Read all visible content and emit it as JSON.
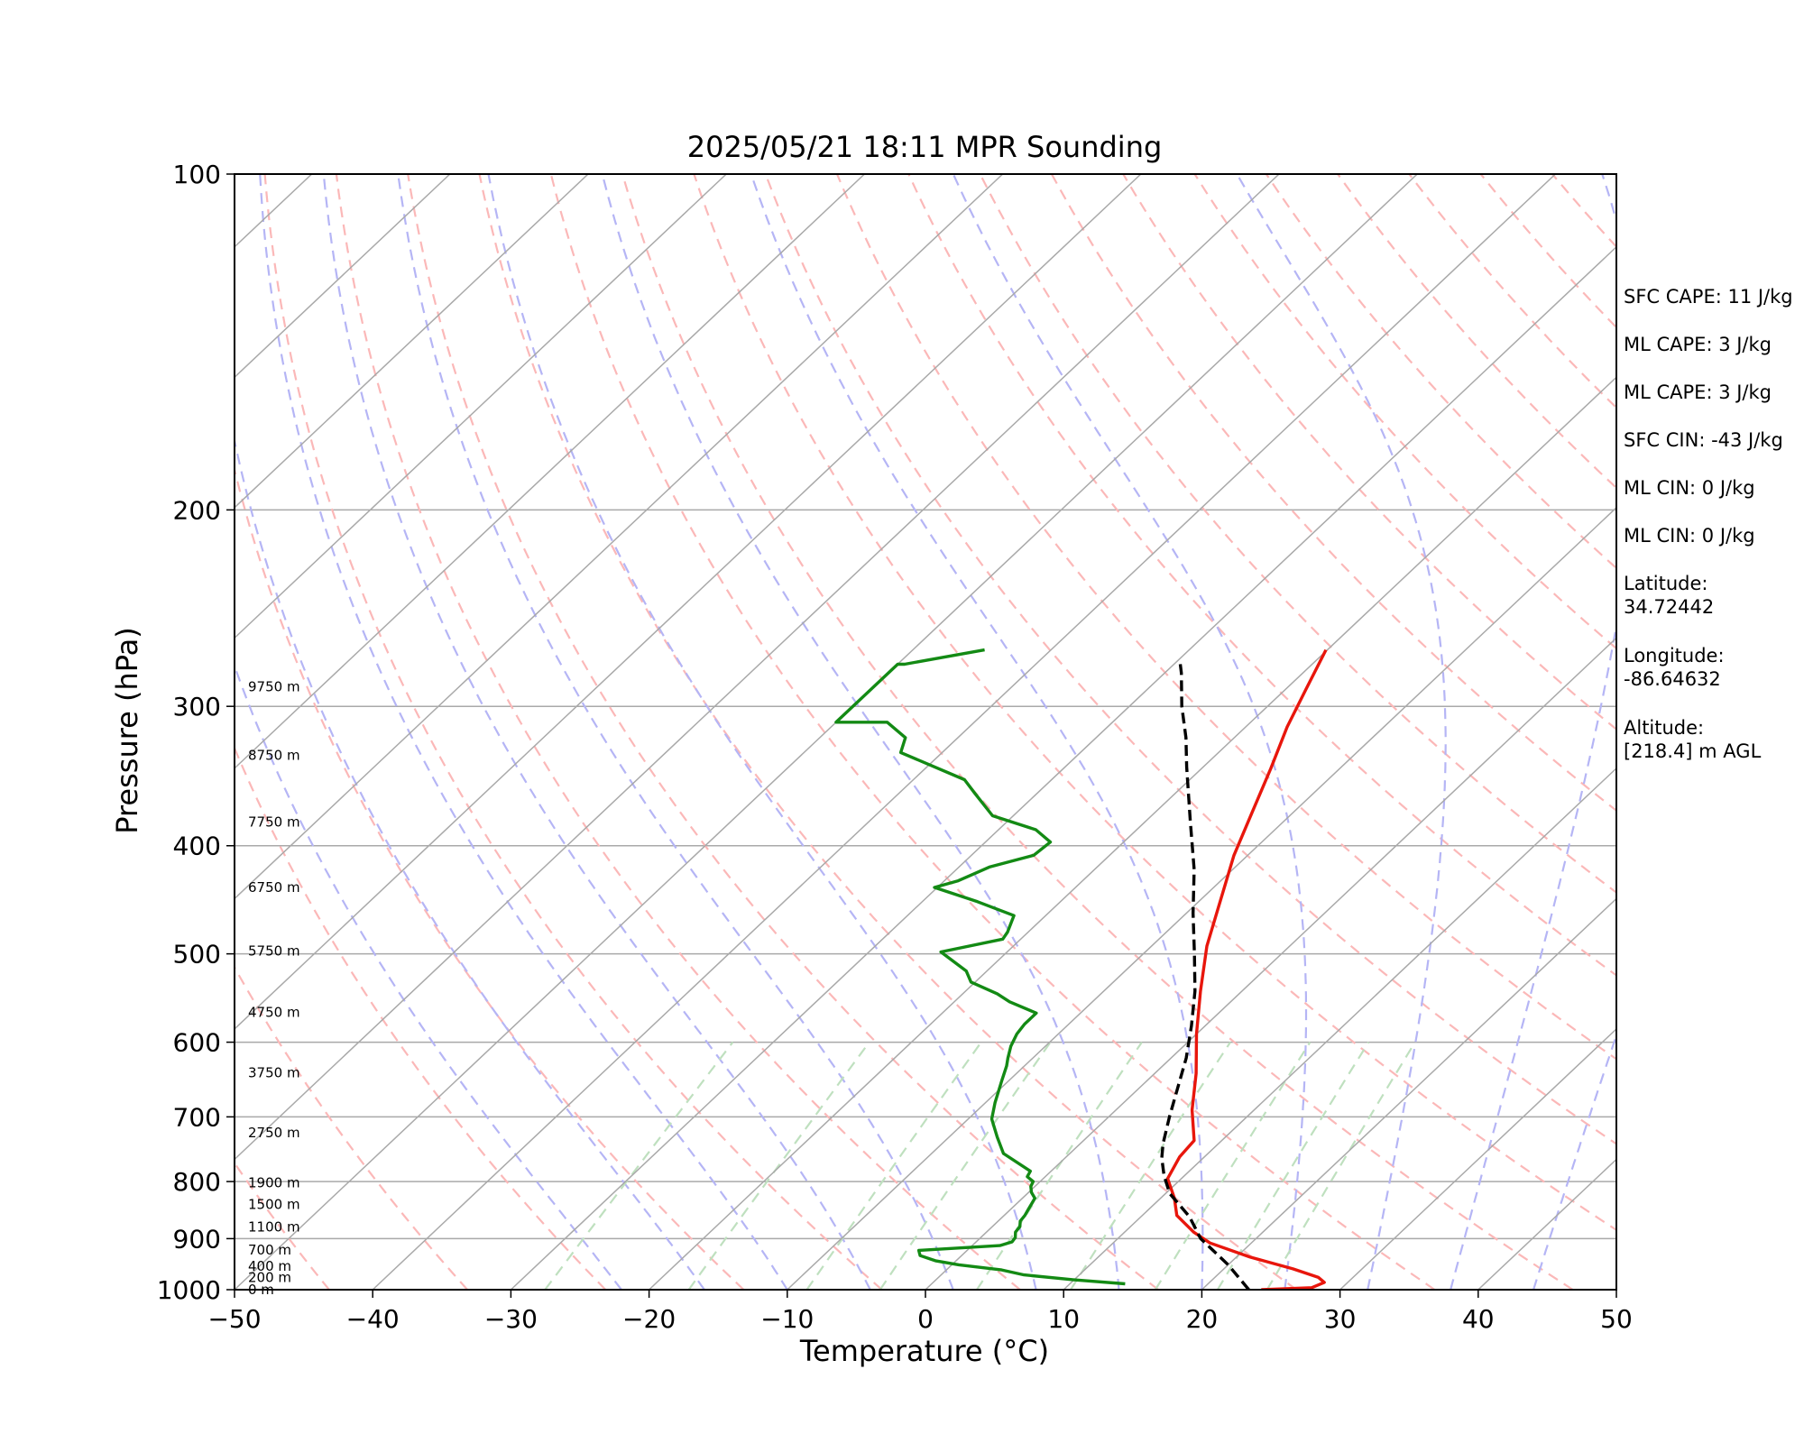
{
  "chart_data": {
    "type": "line",
    "title": "2025/05/21 18:11 MPR Sounding",
    "xlabel": "Temperature (°C)",
    "ylabel": "Pressure (hPa)",
    "xlim": [
      -50,
      50
    ],
    "ylim": [
      1000,
      100
    ],
    "y_scale": "log",
    "x_ticks": [
      "−50",
      "−40",
      "−30",
      "−20",
      "−10",
      "0",
      "10",
      "20",
      "30",
      "40",
      "50"
    ],
    "y_ticks": [
      100,
      200,
      300,
      400,
      500,
      600,
      700,
      800,
      900,
      1000
    ],
    "grid": "horizontal isobars",
    "series": [
      {
        "name": "",
        "role": "temperature",
        "color": "#e8160c",
        "points": [
          [
            -20.1,
            267
          ],
          [
            -18.5,
            290
          ],
          [
            -17,
            313
          ],
          [
            -15,
            341
          ],
          [
            -13,
            373
          ],
          [
            -11,
            408
          ],
          [
            -8.5,
            448
          ],
          [
            -6,
            492
          ],
          [
            -3,
            540
          ],
          [
            0,
            590
          ],
          [
            3,
            640
          ],
          [
            5.5,
            690
          ],
          [
            8,
            735
          ],
          [
            8.2,
            760
          ],
          [
            9,
            795
          ],
          [
            11,
            828
          ],
          [
            12.5,
            858
          ],
          [
            15,
            888
          ],
          [
            17,
            908
          ],
          [
            21,
            935
          ],
          [
            25,
            958
          ],
          [
            27.5,
            975
          ],
          [
            28.3,
            985
          ],
          [
            27.8,
            996
          ],
          [
            24.3,
            1000
          ]
        ]
      },
      {
        "name": "",
        "role": "dewpoint",
        "color": "#138a14",
        "points": [
          [
            -44.8,
            267
          ],
          [
            -49.5,
            275
          ],
          [
            -50,
            275
          ],
          [
            -50,
            310
          ],
          [
            -46.3,
            310
          ],
          [
            -43.8,
            320
          ],
          [
            -43,
            330
          ],
          [
            -36.3,
            349
          ],
          [
            -34.5,
            359
          ],
          [
            -31.5,
            376
          ],
          [
            -27.3,
            387
          ],
          [
            -25.3,
            397
          ],
          [
            -25.5,
            408
          ],
          [
            -27.8,
            418
          ],
          [
            -28.5,
            425
          ],
          [
            -29,
            430
          ],
          [
            -30.2,
            436
          ],
          [
            -26,
            449
          ],
          [
            -22.3,
            462
          ],
          [
            -21.5,
            478
          ],
          [
            -21.3,
            485
          ],
          [
            -24.8,
            498
          ],
          [
            -21.5,
            518
          ],
          [
            -20.3,
            530
          ],
          [
            -17.5,
            543
          ],
          [
            -16,
            552
          ],
          [
            -13.2,
            565
          ],
          [
            -13.2,
            578
          ],
          [
            -13,
            590
          ],
          [
            -12.5,
            605
          ],
          [
            -11.8,
            620
          ],
          [
            -11.3,
            630
          ],
          [
            -10.5,
            650
          ],
          [
            -9.3,
            680
          ],
          [
            -8.3,
            703
          ],
          [
            -6.5,
            730
          ],
          [
            -4.8,
            755
          ],
          [
            -1.5,
            783
          ],
          [
            -1.3,
            792
          ],
          [
            -0.5,
            800
          ],
          [
            -0.3,
            808
          ],
          [
            0.2,
            818
          ],
          [
            0.9,
            828
          ],
          [
            1.1,
            838
          ],
          [
            1.3,
            848
          ],
          [
            1.5,
            858
          ],
          [
            1.6,
            868
          ],
          [
            2,
            878
          ],
          [
            2.1,
            888
          ],
          [
            2.5,
            898
          ],
          [
            2.6,
            906
          ],
          [
            2,
            913
          ],
          [
            -3.5,
            922
          ],
          [
            -3,
            932
          ],
          [
            -1.5,
            942
          ],
          [
            0.5,
            950
          ],
          [
            4,
            960
          ],
          [
            6,
            970
          ],
          [
            10,
            980
          ],
          [
            14,
            988
          ]
        ]
      },
      {
        "name": "",
        "role": "parcel",
        "color": "#000000",
        "dashed": true,
        "points": [
          [
            23.4,
            1000
          ],
          [
            20,
            950
          ],
          [
            16,
            900
          ],
          [
            13.5,
            860
          ],
          [
            10.3,
            820
          ],
          [
            8.5,
            790
          ],
          [
            7,
            762
          ],
          [
            6,
            740
          ],
          [
            4.4,
            700
          ],
          [
            2.8,
            660
          ],
          [
            1.1,
            620
          ],
          [
            -1,
            580
          ],
          [
            -3.4,
            540
          ],
          [
            -6.3,
            500
          ],
          [
            -9.5,
            460
          ],
          [
            -12.8,
            420
          ],
          [
            -16.8,
            380
          ],
          [
            -21.2,
            340
          ],
          [
            -23.5,
            320
          ],
          [
            -26.2,
            300
          ],
          [
            -28.8,
            280
          ],
          [
            -30,
            272
          ]
        ]
      }
    ],
    "height_labels": [
      {
        "label": "0 m",
        "p": 1000
      },
      {
        "label": "200 m",
        "p": 975
      },
      {
        "label": "400 m",
        "p": 953
      },
      {
        "label": "700 m",
        "p": 921
      },
      {
        "label": "1100 m",
        "p": 879
      },
      {
        "label": "1500 m",
        "p": 839
      },
      {
        "label": "1900 m",
        "p": 802
      },
      {
        "label": "2750 m",
        "p": 723
      },
      {
        "label": "3750 m",
        "p": 639
      },
      {
        "label": "4750 m",
        "p": 564
      },
      {
        "label": "5750 m",
        "p": 497
      },
      {
        "label": "6750 m",
        "p": 436
      },
      {
        "label": "7750 m",
        "p": 381
      },
      {
        "label": "8750 m",
        "p": 332
      },
      {
        "label": "9750 m",
        "p": 288
      }
    ],
    "reference_lines": {
      "isotherms_color": "#a9a9a9",
      "dry_adiabats_color": "#fbb8b8",
      "moist_adiabats_color": "#b5b5f5",
      "mixing_ratio_color": "#bfe0bf"
    }
  },
  "stats": {
    "sfc_cape": "SFC CAPE: 11 J/kg",
    "ml_cape_1": "ML CAPE: 3 J/kg",
    "ml_cape_2": "ML CAPE: 3 J/kg",
    "sfc_cin": "SFC CIN: -43 J/kg",
    "ml_cin_1": "ML CIN: 0 J/kg",
    "ml_cin_2": "ML CIN: 0 J/kg",
    "latitude_label": "Latitude:",
    "latitude_value": "34.72442",
    "longitude_label": "Longitude:",
    "longitude_value": "-86.64632",
    "altitude_label": "Altitude:",
    "altitude_value": "[218.4] m AGL"
  }
}
